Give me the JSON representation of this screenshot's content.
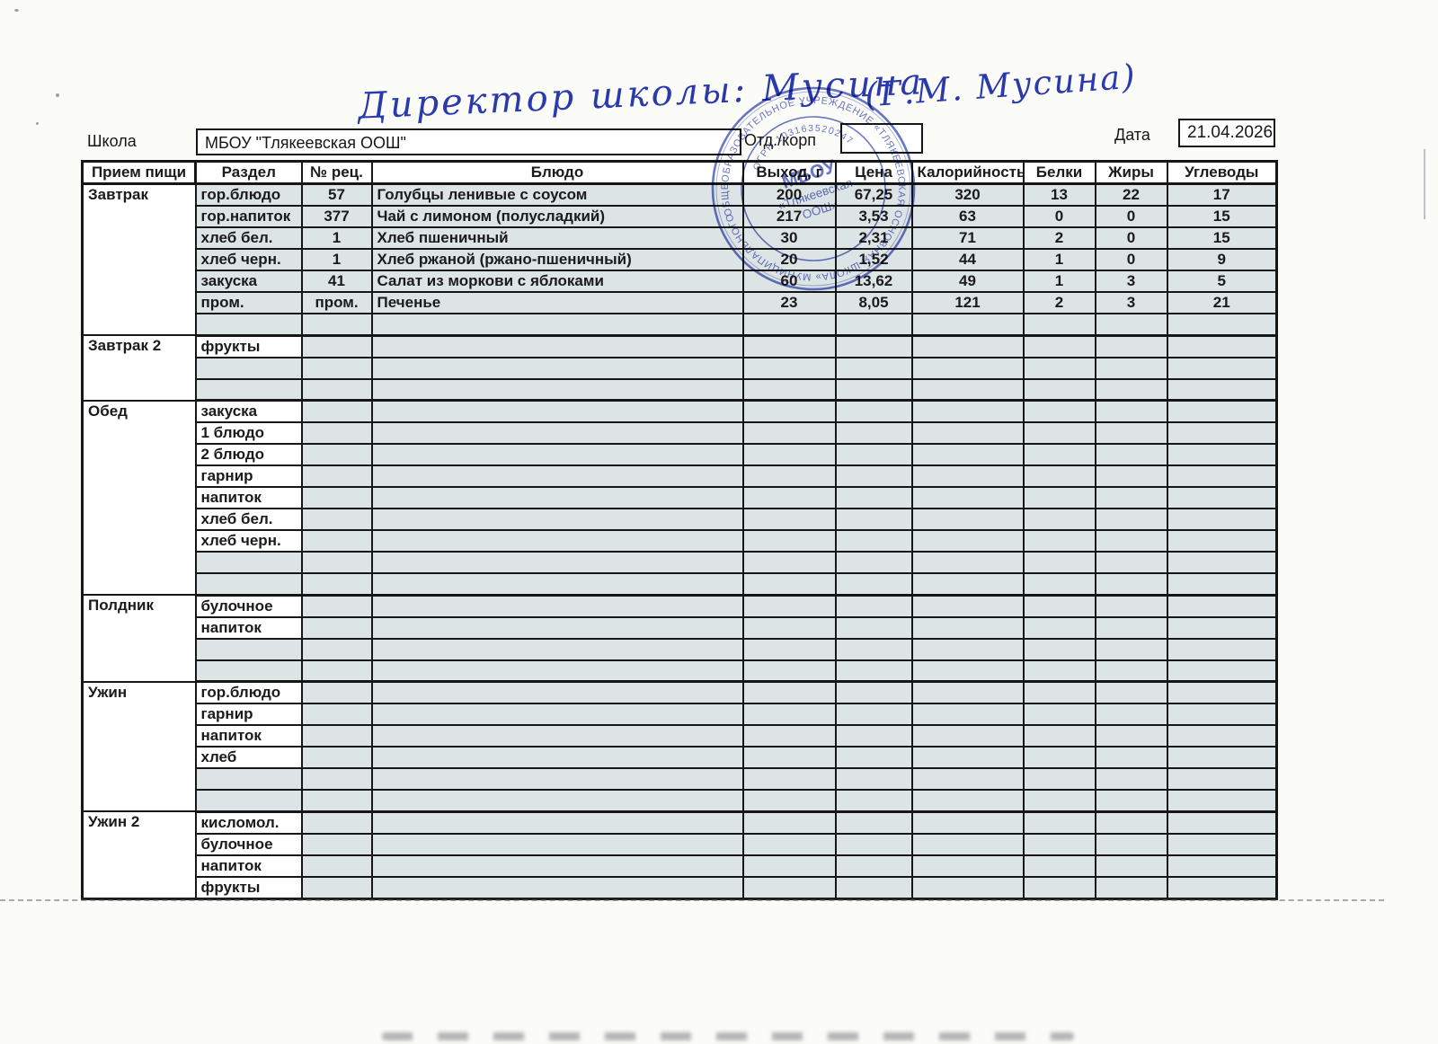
{
  "signature": {
    "text": "Директор школы: Мусина",
    "initials": "(Г.М. Мусина)"
  },
  "form": {
    "school_label": "Школа",
    "school_value": "МБОУ \"Тлякеевская ООШ\"",
    "dept_label": "Отд./корп",
    "dept_value": "",
    "date_label": "Дата",
    "date_value": "21.04.2026"
  },
  "stamp": {
    "outer_text": "ОБЩЕОБРАЗОВАТЕЛЬНОЕ УЧРЕЖДЕНИЕ «ТЛЯКЕЕВСКАЯ ОСНОВНАЯ ШКОЛА» МУНИЦИПАЛЬНОГО РАЙОНА",
    "inner_text": "ОГРН 103163520247",
    "center_line1": "МБОУ",
    "center_line2": "«Тлякеевская",
    "center_line3": "ООШ»"
  },
  "colors": {
    "table_shade": "#dde4e5",
    "stamp_blue": "#3f51b5",
    "ink_blue": "#2a3aad",
    "line_black": "#161616"
  },
  "table": {
    "headers": [
      "Прием пищи",
      "Раздел",
      "№ рец.",
      "Блюдо",
      "Выход, г",
      "Цена",
      "Калорийность",
      "Белки",
      "Жиры",
      "Углеводы"
    ],
    "sections": [
      {
        "meal": "Завтрак",
        "shaded_labels": true,
        "rows": [
          [
            "гор.блюдо",
            "57",
            "Голубцы ленивые с соусом",
            "200",
            "67,25",
            "320",
            "13",
            "22",
            "17"
          ],
          [
            "гор.напиток",
            "377",
            "Чай с лимоном (полусладкий)",
            "217",
            "3,53",
            "63",
            "0",
            "0",
            "15"
          ],
          [
            "хлеб бел.",
            "1",
            "Хлеб пшеничный",
            "30",
            "2,31",
            "71",
            "2",
            "0",
            "15"
          ],
          [
            "хлеб черн.",
            "1",
            "Хлеб ржаной (ржано-пшеничный)",
            "20",
            "1,52",
            "44",
            "1",
            "0",
            "9"
          ],
          [
            "закуска",
            "41",
            "Салат из моркови с яблоками",
            "60",
            "13,62",
            "49",
            "1",
            "3",
            "5"
          ],
          [
            "пром.",
            "пром.",
            "Печенье",
            "23",
            "8,05",
            "121",
            "2",
            "3",
            "21"
          ],
          [
            "",
            "",
            "",
            "",
            "",
            "",
            "",
            "",
            ""
          ]
        ]
      },
      {
        "meal": "Завтрак 2",
        "shaded_labels": false,
        "rows": [
          [
            "фрукты",
            "",
            "",
            "",
            "",
            "",
            "",
            "",
            ""
          ],
          [
            "",
            "",
            "",
            "",
            "",
            "",
            "",
            "",
            ""
          ],
          [
            "",
            "",
            "",
            "",
            "",
            "",
            "",
            "",
            ""
          ]
        ]
      },
      {
        "meal": "Обед",
        "shaded_labels": false,
        "rows": [
          [
            "закуска",
            "",
            "",
            "",
            "",
            "",
            "",
            "",
            ""
          ],
          [
            "1 блюдо",
            "",
            "",
            "",
            "",
            "",
            "",
            "",
            ""
          ],
          [
            "2 блюдо",
            "",
            "",
            "",
            "",
            "",
            "",
            "",
            ""
          ],
          [
            "гарнир",
            "",
            "",
            "",
            "",
            "",
            "",
            "",
            ""
          ],
          [
            "напиток",
            "",
            "",
            "",
            "",
            "",
            "",
            "",
            ""
          ],
          [
            "хлеб бел.",
            "",
            "",
            "",
            "",
            "",
            "",
            "",
            ""
          ],
          [
            "хлеб черн.",
            "",
            "",
            "",
            "",
            "",
            "",
            "",
            ""
          ],
          [
            "",
            "",
            "",
            "",
            "",
            "",
            "",
            "",
            ""
          ],
          [
            "",
            "",
            "",
            "",
            "",
            "",
            "",
            "",
            ""
          ]
        ]
      },
      {
        "meal": "Полдник",
        "shaded_labels": false,
        "rows": [
          [
            "булочное",
            "",
            "",
            "",
            "",
            "",
            "",
            "",
            ""
          ],
          [
            "напиток",
            "",
            "",
            "",
            "",
            "",
            "",
            "",
            ""
          ],
          [
            "",
            "",
            "",
            "",
            "",
            "",
            "",
            "",
            ""
          ],
          [
            "",
            "",
            "",
            "",
            "",
            "",
            "",
            "",
            ""
          ]
        ]
      },
      {
        "meal": "Ужин",
        "shaded_labels": false,
        "rows": [
          [
            "гор.блюдо",
            "",
            "",
            "",
            "",
            "",
            "",
            "",
            ""
          ],
          [
            "гарнир",
            "",
            "",
            "",
            "",
            "",
            "",
            "",
            ""
          ],
          [
            "напиток",
            "",
            "",
            "",
            "",
            "",
            "",
            "",
            ""
          ],
          [
            "хлеб",
            "",
            "",
            "",
            "",
            "",
            "",
            "",
            ""
          ],
          [
            "",
            "",
            "",
            "",
            "",
            "",
            "",
            "",
            ""
          ],
          [
            "",
            "",
            "",
            "",
            "",
            "",
            "",
            "",
            ""
          ]
        ]
      },
      {
        "meal": "Ужин 2",
        "shaded_labels": false,
        "rows": [
          [
            "кисломол.",
            "",
            "",
            "",
            "",
            "",
            "",
            "",
            ""
          ],
          [
            "булочное",
            "",
            "",
            "",
            "",
            "",
            "",
            "",
            ""
          ],
          [
            "напиток",
            "",
            "",
            "",
            "",
            "",
            "",
            "",
            ""
          ],
          [
            "фрукты",
            "",
            "",
            "",
            "",
            "",
            "",
            "",
            ""
          ]
        ]
      }
    ]
  }
}
